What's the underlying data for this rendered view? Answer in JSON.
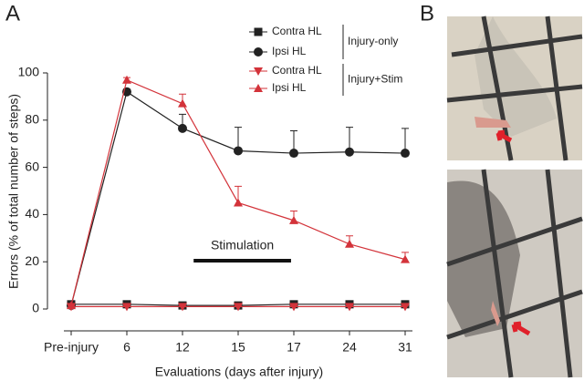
{
  "panel_labels": [
    "A",
    "B"
  ],
  "chart_data": {
    "type": "line",
    "ylabel": "Errors (% of total number of steps)",
    "xlabel": "Evaluations (days after injury)",
    "categories": [
      "Pre-injury",
      "6",
      "12",
      "15",
      "17",
      "24",
      "31"
    ],
    "ylim": [
      0,
      100
    ],
    "yticks": [
      0,
      20,
      40,
      60,
      80,
      100
    ],
    "annotation": "Stimulation",
    "legend_groups": [
      {
        "label": "Injury-only",
        "series": [
          0,
          1
        ]
      },
      {
        "label": "Injury+Stim",
        "series": [
          2,
          3
        ]
      }
    ],
    "series": [
      {
        "name": "Contra HL",
        "color": "#222222",
        "marker": "square",
        "values": [
          2,
          2,
          1.5,
          1.5,
          2,
          2,
          2
        ],
        "errors": [
          0.5,
          0.5,
          0.5,
          0.5,
          0.5,
          0.5,
          0.5
        ]
      },
      {
        "name": "Ipsi HL",
        "color": "#222222",
        "marker": "circle",
        "values": [
          1.5,
          92,
          76.5,
          67,
          66,
          66.5,
          66
        ],
        "errors": [
          0.5,
          1,
          6,
          10,
          9.5,
          10.5,
          10.5
        ]
      },
      {
        "name": "Contra HL",
        "color": "#d3333a",
        "marker": "triangle-down",
        "values": [
          1,
          1,
          1,
          1,
          1,
          1,
          1
        ],
        "errors": [
          0.5,
          0.5,
          0.5,
          0.5,
          0.5,
          0.5,
          0.5
        ]
      },
      {
        "name": "Ipsi HL",
        "color": "#d3333a",
        "marker": "triangle-up",
        "values": [
          1.5,
          97,
          87,
          45,
          37.5,
          27.5,
          21
        ],
        "errors": [
          0.5,
          1,
          4,
          7,
          4,
          3.5,
          3
        ]
      }
    ]
  }
}
